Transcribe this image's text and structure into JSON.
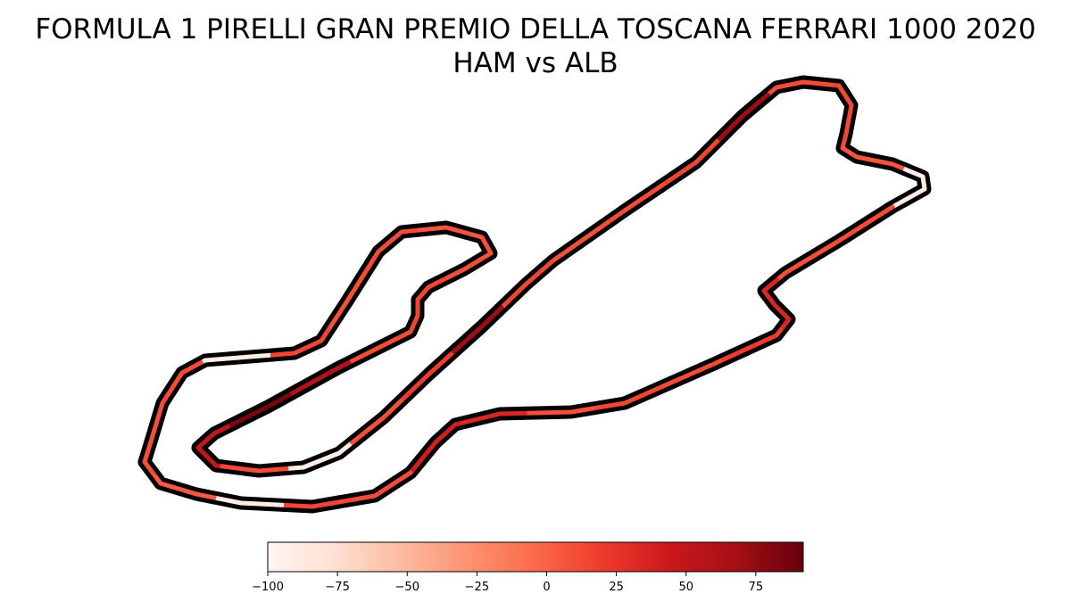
{
  "chart_data": {
    "type": "heatmap",
    "title": "FORMULA 1 PIRELLI GRAN PREMIO DELLA TOSCANA FERRARI 1000 2020",
    "subtitle": "HAM vs ALB",
    "colormap": "Reds",
    "colors": {
      "outline": "#000000",
      "min_color": "#fff5f0",
      "max_color": "#67000d"
    },
    "colorbar": {
      "orientation": "horizontal",
      "range": [
        -100,
        92
      ],
      "ticks": [
        -100,
        -75,
        -50,
        -25,
        0,
        25,
        50,
        75
      ],
      "tick_labels": [
        "−100",
        "−75",
        "−50",
        "−25",
        "0",
        "25",
        "50",
        "75"
      ]
    },
    "track_segments": [
      {
        "id": 1,
        "delta": 10
      },
      {
        "id": 2,
        "delta": 12
      },
      {
        "id": 3,
        "delta": 15
      },
      {
        "id": 4,
        "delta": 70
      },
      {
        "id": 5,
        "delta": 12
      },
      {
        "id": 6,
        "delta": 14
      },
      {
        "id": 7,
        "delta": 8
      },
      {
        "id": 8,
        "delta": -90
      },
      {
        "id": 9,
        "delta": 12
      },
      {
        "id": 10,
        "delta": 10
      },
      {
        "id": 11,
        "delta": 35
      },
      {
        "id": 12,
        "delta": 20
      },
      {
        "id": 13,
        "delta": 12
      },
      {
        "id": 14,
        "delta": 15
      },
      {
        "id": 15,
        "delta": 10
      },
      {
        "id": 16,
        "delta": 35
      },
      {
        "id": 17,
        "delta": 40
      },
      {
        "id": 18,
        "delta": 12
      },
      {
        "id": 19,
        "delta": 15
      },
      {
        "id": 20,
        "delta": -90
      },
      {
        "id": 21,
        "delta": 5
      },
      {
        "id": 22,
        "delta": 10
      },
      {
        "id": 23,
        "delta": 12
      },
      {
        "id": 24,
        "delta": -90
      },
      {
        "id": 25,
        "delta": 15
      },
      {
        "id": 26,
        "delta": 10
      },
      {
        "id": 27,
        "delta": 12
      },
      {
        "id": 28,
        "delta": 8
      },
      {
        "id": 29,
        "delta": 10
      },
      {
        "id": 30,
        "delta": 15
      },
      {
        "id": 31,
        "delta": 12
      },
      {
        "id": 32,
        "delta": 60
      },
      {
        "id": 33,
        "delta": 85
      },
      {
        "id": 34,
        "delta": 50
      },
      {
        "id": 35,
        "delta": 12
      },
      {
        "id": 36,
        "delta": -90
      },
      {
        "id": 37,
        "delta": 10
      },
      {
        "id": 38,
        "delta": 20
      },
      {
        "id": 39,
        "delta": 70
      },
      {
        "id": 40,
        "delta": 15
      }
    ]
  }
}
